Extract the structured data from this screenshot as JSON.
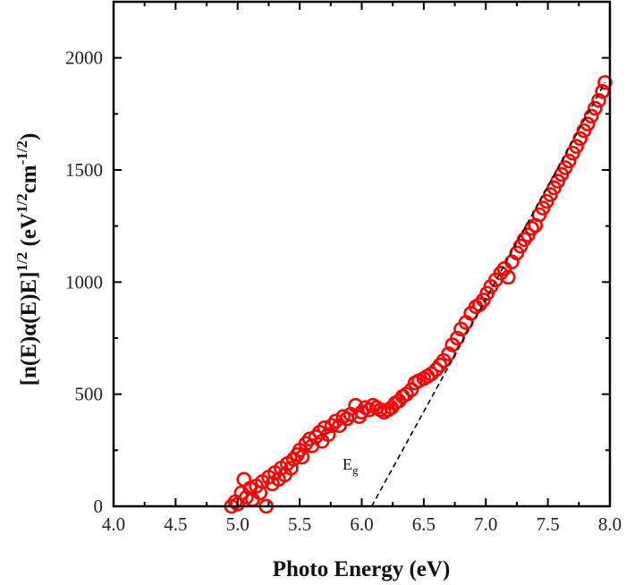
{
  "chart_data": {
    "type": "scatter",
    "xlabel": "Photo Energy (eV)",
    "ylabel_main": "[n(E)α(E)E]",
    "ylabel_sup1": "1/2",
    "ylabel_unit_open": " (eV",
    "ylabel_sup2": "1/2",
    "ylabel_unit_mid": "cm",
    "ylabel_sup3": "-1/2",
    "ylabel_unit_close": ")",
    "xlim": [
      4.0,
      8.0
    ],
    "ylim": [
      0,
      2250
    ],
    "xticks": [
      "4.0",
      "4.5",
      "5.0",
      "5.5",
      "6.0",
      "6.5",
      "7.0",
      "7.5",
      "8.0"
    ],
    "yticks": [
      "0",
      "500",
      "1000",
      "1500",
      "2000"
    ],
    "grid": false,
    "marker": "open-circle",
    "marker_color": "#ff0000",
    "fit_line": {
      "style": "dashed",
      "color": "#000000",
      "x": [
        6.08,
        7.96
      ],
      "y": [
        0,
        1890
      ]
    },
    "annotation": {
      "text": "E",
      "sub": "g",
      "x": 6.05,
      "y": 120
    },
    "points": [
      [
        4.95,
        0
      ],
      [
        4.98,
        20
      ],
      [
        5.0,
        10
      ],
      [
        5.03,
        60
      ],
      [
        5.05,
        120
      ],
      [
        5.07,
        40
      ],
      [
        5.1,
        80
      ],
      [
        5.12,
        30
      ],
      [
        5.15,
        90
      ],
      [
        5.18,
        60
      ],
      [
        5.2,
        110
      ],
      [
        5.23,
        0
      ],
      [
        5.25,
        130
      ],
      [
        5.28,
        100
      ],
      [
        5.3,
        150
      ],
      [
        5.33,
        120
      ],
      [
        5.35,
        170
      ],
      [
        5.38,
        140
      ],
      [
        5.4,
        190
      ],
      [
        5.43,
        170
      ],
      [
        5.45,
        210
      ],
      [
        5.48,
        230
      ],
      [
        5.5,
        250
      ],
      [
        5.52,
        220
      ],
      [
        5.55,
        280
      ],
      [
        5.58,
        300
      ],
      [
        5.6,
        270
      ],
      [
        5.63,
        310
      ],
      [
        5.66,
        330
      ],
      [
        5.68,
        290
      ],
      [
        5.7,
        350
      ],
      [
        5.73,
        320
      ],
      [
        5.76,
        360
      ],
      [
        5.79,
        380
      ],
      [
        5.82,
        360
      ],
      [
        5.85,
        400
      ],
      [
        5.88,
        390
      ],
      [
        5.91,
        410
      ],
      [
        5.95,
        450
      ],
      [
        5.98,
        400
      ],
      [
        6.0,
        420
      ],
      [
        6.03,
        440
      ],
      [
        6.06,
        430
      ],
      [
        6.09,
        450
      ],
      [
        6.12,
        440
      ],
      [
        6.15,
        430
      ],
      [
        6.18,
        420
      ],
      [
        6.21,
        430
      ],
      [
        6.24,
        440
      ],
      [
        6.27,
        460
      ],
      [
        6.3,
        470
      ],
      [
        6.33,
        490
      ],
      [
        6.36,
        500
      ],
      [
        6.4,
        520
      ],
      [
        6.43,
        550
      ],
      [
        6.46,
        560
      ],
      [
        6.5,
        570
      ],
      [
        6.53,
        580
      ],
      [
        6.56,
        590
      ],
      [
        6.6,
        610
      ],
      [
        6.63,
        630
      ],
      [
        6.66,
        650
      ],
      [
        6.7,
        680
      ],
      [
        6.73,
        720
      ],
      [
        6.77,
        750
      ],
      [
        6.8,
        790
      ],
      [
        6.84,
        820
      ],
      [
        6.88,
        860
      ],
      [
        6.92,
        890
      ],
      [
        6.95,
        900
      ],
      [
        6.98,
        920
      ],
      [
        7.01,
        950
      ],
      [
        7.04,
        980
      ],
      [
        7.08,
        1010
      ],
      [
        7.12,
        1040
      ],
      [
        7.15,
        1060
      ],
      [
        7.18,
        1022
      ],
      [
        7.21,
        1090
      ],
      [
        7.25,
        1130
      ],
      [
        7.28,
        1160
      ],
      [
        7.31,
        1190
      ],
      [
        7.34,
        1210
      ],
      [
        7.37,
        1240
      ],
      [
        7.4,
        1253
      ],
      [
        7.43,
        1300
      ],
      [
        7.46,
        1330
      ],
      [
        7.49,
        1360
      ],
      [
        7.52,
        1390
      ],
      [
        7.55,
        1420
      ],
      [
        7.58,
        1450
      ],
      [
        7.61,
        1480
      ],
      [
        7.64,
        1510
      ],
      [
        7.67,
        1540
      ],
      [
        7.7,
        1575
      ],
      [
        7.73,
        1605
      ],
      [
        7.76,
        1640
      ],
      [
        7.79,
        1675
      ],
      [
        7.82,
        1705
      ],
      [
        7.85,
        1740
      ],
      [
        7.88,
        1775
      ],
      [
        7.91,
        1810
      ],
      [
        7.94,
        1850
      ],
      [
        7.96,
        1890
      ]
    ]
  }
}
